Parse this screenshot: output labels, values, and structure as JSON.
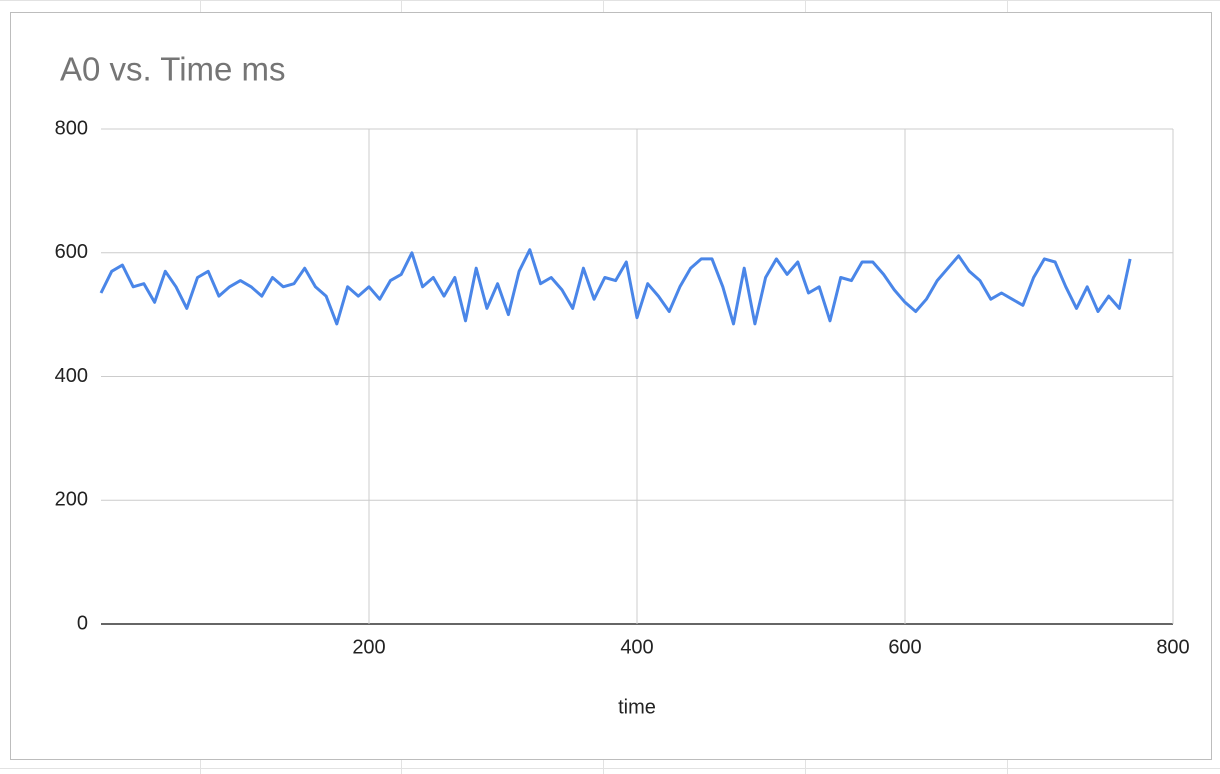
{
  "chart_data": {
    "type": "line",
    "title": "A0 vs. Time ms",
    "x_label": "time",
    "xlim": [
      0,
      800
    ],
    "xticks": [
      200,
      400,
      600,
      800
    ],
    "ylim": [
      0,
      800
    ],
    "yticks": [
      0,
      200,
      400,
      600,
      800
    ],
    "grid": true,
    "x": [
      0,
      8,
      16,
      24,
      32,
      40,
      48,
      56,
      64,
      72,
      80,
      88,
      96,
      104,
      112,
      120,
      128,
      136,
      144,
      152,
      160,
      168,
      176,
      184,
      192,
      200,
      208,
      216,
      224,
      232,
      240,
      248,
      256,
      264,
      272,
      280,
      288,
      296,
      304,
      312,
      320,
      328,
      336,
      344,
      352,
      360,
      368,
      376,
      384,
      392,
      400,
      408,
      416,
      424,
      432,
      440,
      448,
      456,
      464,
      472,
      480,
      488,
      496,
      504,
      512,
      520,
      528,
      536,
      544,
      552,
      560,
      568,
      576,
      584,
      592,
      600,
      608,
      616,
      624,
      632,
      640,
      648,
      656,
      664,
      672,
      680,
      688,
      696,
      704,
      712,
      720,
      728,
      736,
      744,
      752,
      760,
      768
    ],
    "series": [
      {
        "color": "#4a86e8",
        "values": [
          535,
          570,
          580,
          545,
          550,
          520,
          570,
          545,
          510,
          560,
          570,
          530,
          545,
          555,
          545,
          530,
          560,
          545,
          550,
          575,
          545,
          530,
          485,
          545,
          530,
          545,
          525,
          555,
          565,
          600,
          545,
          560,
          530,
          560,
          490,
          575,
          510,
          550,
          500,
          570,
          605,
          550,
          560,
          540,
          510,
          575,
          525,
          560,
          555,
          585,
          495,
          550,
          530,
          505,
          545,
          575,
          590,
          590,
          545,
          485,
          575,
          485,
          560,
          590,
          565,
          585,
          535,
          545,
          490,
          560,
          555,
          585,
          585,
          565,
          540,
          520,
          505,
          525,
          555,
          575,
          595,
          570,
          555,
          525,
          535,
          525,
          515,
          560,
          590,
          585,
          545,
          510,
          545,
          505,
          530,
          510,
          590
        ]
      }
    ]
  }
}
